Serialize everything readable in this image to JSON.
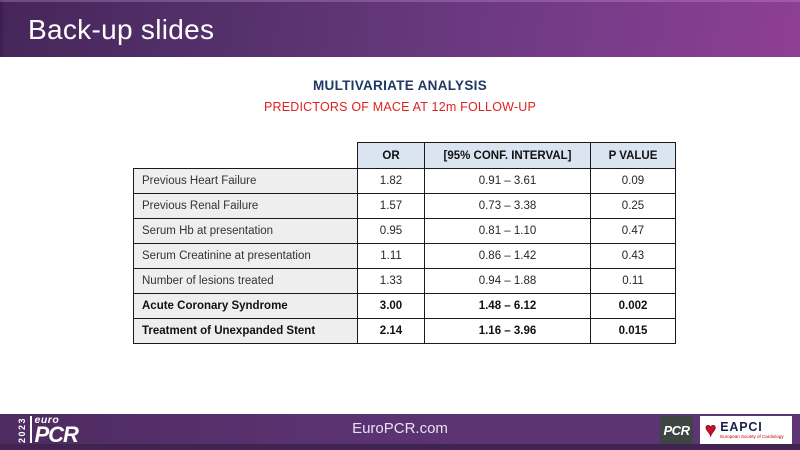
{
  "header": {
    "title": "Back-up slides"
  },
  "titles": {
    "main": "MULTIVARIATE ANALYSIS",
    "subtitle": "PREDICTORS OF MACE AT 12m FOLLOW-UP"
  },
  "table": {
    "columns": [
      "OR",
      "[95% CONF. INTERVAL]",
      "P VALUE"
    ],
    "rows": [
      {
        "label": "Previous Heart Failure",
        "or": "1.82",
        "ci": "0.91 – 3.61",
        "p": "0.09"
      },
      {
        "label": "Previous Renal Failure",
        "or": "1.57",
        "ci": "0.73 – 3.38",
        "p": "0.25"
      },
      {
        "label": "Serum Hb at presentation",
        "or": "0.95",
        "ci": "0.81 – 1.10",
        "p": "0.47"
      },
      {
        "label": "Serum Creatinine at presentation",
        "or": "1.11",
        "ci": "0.86 – 1.42",
        "p": "0.43"
      },
      {
        "label": "Number of lesions treated",
        "or": "1.33",
        "ci": "0.94 – 1.88",
        "p": "0.11"
      },
      {
        "label": "Acute Coronary Syndrome",
        "or": "3.00",
        "ci": "1.48 – 6.12",
        "p": "0.002"
      },
      {
        "label": "Treatment of Unexpanded Stent",
        "or": "2.14",
        "ci": "1.16 – 3.96",
        "p": "0.015"
      }
    ]
  },
  "footer": {
    "site": "EuroPCR.com",
    "event_logo": {
      "year": "2023",
      "euro": "euro",
      "pcr": "PCR"
    },
    "pcr_badge": "PCR",
    "eapci": {
      "name": "EAPCI",
      "tagline": "European Society of Cardiology",
      "heart_glyph": "♥"
    }
  },
  "colors": {
    "header_gradient_start": "#46265a",
    "header_gradient_end": "#8e3f96",
    "footer_purple": "#5b3372",
    "footer_bottom_strip": "#41234f",
    "title_navy": "#1f3864",
    "subtitle_red": "#e02020",
    "table_header_bg": "#dbe5f1",
    "label_column_bg": "#eeeeee",
    "eapci_navy": "#16214a",
    "heart_red": "#cc1126"
  }
}
